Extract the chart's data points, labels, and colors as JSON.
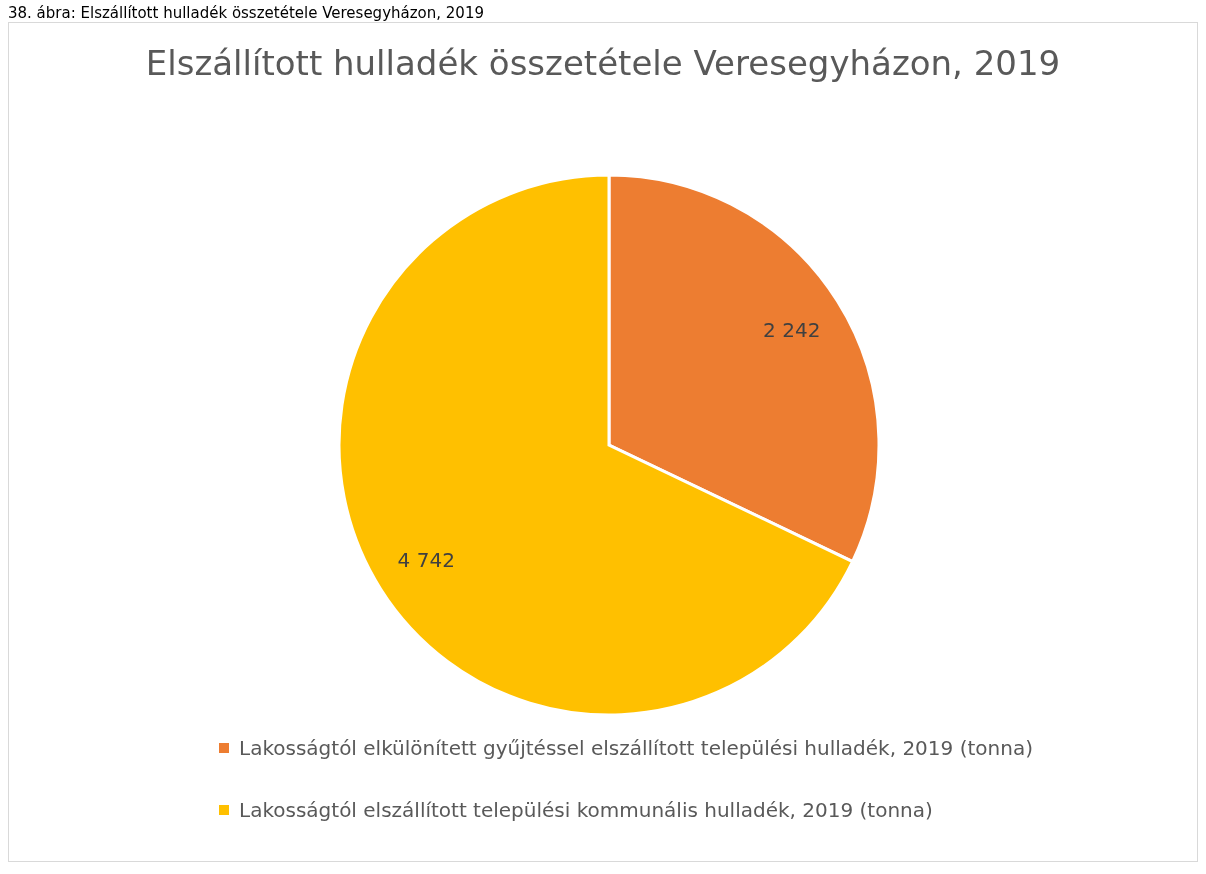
{
  "chart_data": {
    "type": "pie",
    "title": "Elszállított hulladék összetétele Veresegyházon, 2019",
    "annotations": [
      "38. ábra: Elszállított hulladék összetétele Veresegyházon, 2019"
    ],
    "categories": [
      "Lakosságtól elkülönített gyűjtéssel elszállított települési hulladék, 2019 (tonna)",
      "Lakosságtól elszállított települési kommunális hulladék, 2019 (tonna)"
    ],
    "values": [
      2242,
      4742
    ],
    "colors": [
      "#ed7d31",
      "#ffc000"
    ],
    "value_labels": [
      "2 242",
      "4 742"
    ],
    "legend": "bottom"
  }
}
